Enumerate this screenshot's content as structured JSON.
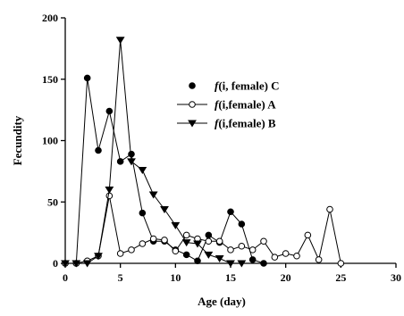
{
  "chart_data": {
    "type": "line",
    "xlabel": "Age (day)",
    "ylabel": "Fecundity",
    "xlim": [
      0,
      30
    ],
    "ylim": [
      0,
      200
    ],
    "xticks": [
      0,
      5,
      10,
      15,
      20,
      25,
      30
    ],
    "yticks": [
      0,
      50,
      100,
      150,
      200
    ],
    "grid": false,
    "legend_position": "center-right",
    "series": [
      {
        "name": "f(i, female) C",
        "legend_italic": "f",
        "legend_rest": "(i, female) C",
        "marker": "filled-circle",
        "color": "#000000",
        "x": [
          0,
          1,
          2,
          3,
          4,
          5,
          6,
          7,
          8,
          9,
          10,
          11,
          12,
          13,
          14,
          15,
          16,
          17,
          18
        ],
        "y": [
          0,
          0,
          151,
          92,
          124,
          83,
          89,
          41,
          18,
          18,
          11,
          7,
          2,
          23,
          17,
          42,
          32,
          3,
          0
        ]
      },
      {
        "name": "f(i,female) A",
        "legend_italic": "f",
        "legend_rest": "(i,female) A",
        "marker": "open-circle",
        "color": "#000000",
        "x": [
          0,
          1,
          2,
          3,
          4,
          5,
          6,
          7,
          8,
          9,
          10,
          11,
          12,
          13,
          14,
          15,
          16,
          17,
          18,
          19,
          20,
          21,
          22,
          23,
          24,
          25
        ],
        "y": [
          0,
          0,
          2,
          6,
          55,
          8,
          11,
          16,
          20,
          19,
          10,
          23,
          20,
          18,
          18,
          11,
          14,
          11,
          18,
          5,
          8,
          6,
          23,
          3,
          44,
          0
        ]
      },
      {
        "name": "f(i,female) B",
        "legend_italic": "f",
        "legend_rest": "(i,female) B",
        "marker": "filled-triangle-down",
        "color": "#000000",
        "x": [
          0,
          1,
          2,
          3,
          4,
          5,
          6,
          7,
          8,
          9,
          10,
          11,
          12,
          13,
          14,
          15,
          16
        ],
        "y": [
          0,
          0,
          0,
          6,
          60,
          182,
          83,
          76,
          56,
          44,
          31,
          17,
          16,
          7,
          4,
          0,
          0
        ]
      }
    ]
  }
}
